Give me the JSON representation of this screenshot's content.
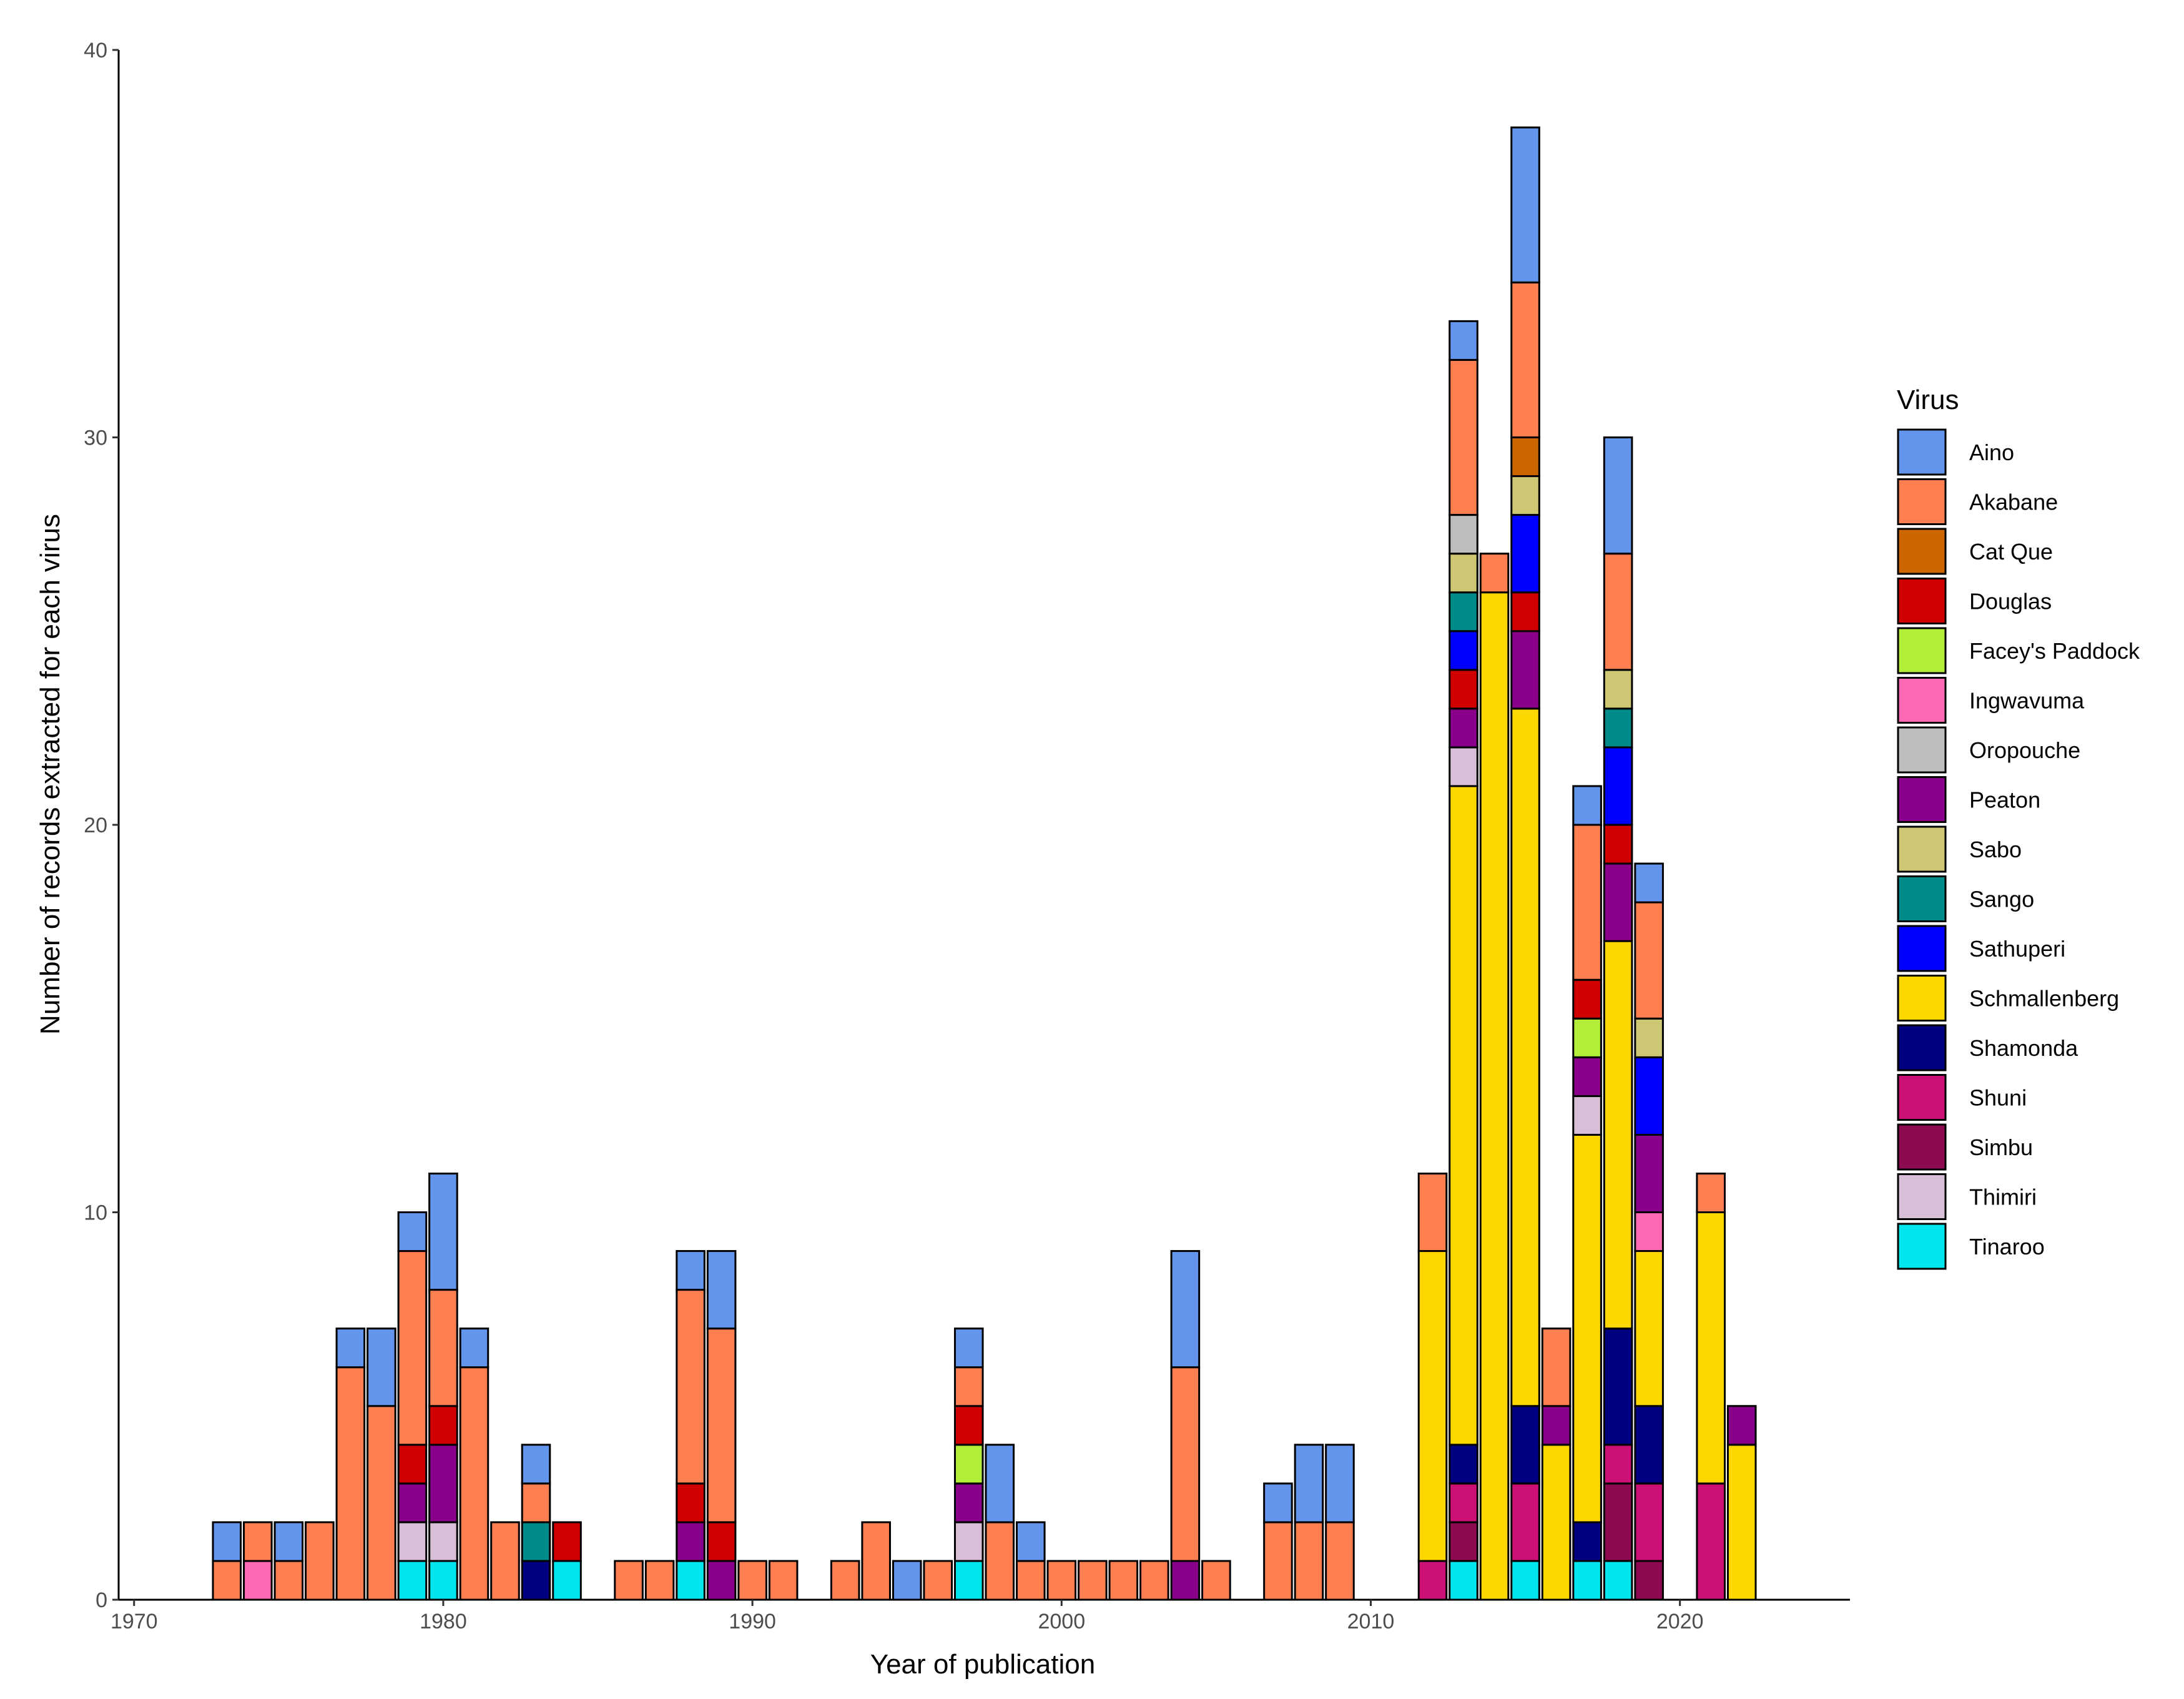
{
  "chart_data": {
    "type": "bar",
    "stacked": true,
    "xlabel": "Year of publication",
    "ylabel": "Number of records extracted for each virus",
    "xlim": [
      1969.5,
      2025.5
    ],
    "ylim": [
      0,
      40
    ],
    "x_ticks": [
      "1970",
      "1980",
      "1990",
      "2000",
      "2010",
      "2020"
    ],
    "y_ticks": [
      "0",
      "10",
      "20",
      "30",
      "40"
    ],
    "grid": false,
    "legend_position": "right",
    "legend_title": "Virus",
    "viruses": [
      {
        "name": "Aino",
        "color": "#6495ED"
      },
      {
        "name": "Akabane",
        "color": "#FF7F50"
      },
      {
        "name": "Cat Que",
        "color": "#CC6600"
      },
      {
        "name": "Douglas",
        "color": "#D00000"
      },
      {
        "name": "Facey's Paddock",
        "color": "#B3EE3A"
      },
      {
        "name": "Ingwavuma",
        "color": "#FF69B4"
      },
      {
        "name": "Oropouche",
        "color": "#BEBEBE"
      },
      {
        "name": "Peaton",
        "color": "#8B008B"
      },
      {
        "name": "Sabo",
        "color": "#CDC673"
      },
      {
        "name": "Sango",
        "color": "#008B8B"
      },
      {
        "name": "Sathuperi",
        "color": "#0000FF"
      },
      {
        "name": "Schmallenberg",
        "color": "#FFD700"
      },
      {
        "name": "Shamonda",
        "color": "#000080"
      },
      {
        "name": "Shuni",
        "color": "#CD1076"
      },
      {
        "name": "Simbu",
        "color": "#8B0A50"
      },
      {
        "name": "Thimiri",
        "color": "#D8BFD8"
      },
      {
        "name": "Tinaroo",
        "color": "#00E5EE"
      }
    ],
    "stack_order": [
      "Tinaroo",
      "Simbu",
      "Shuni",
      "Shamonda",
      "Schmallenberg",
      "Ingwavuma",
      "Thimiri",
      "Peaton",
      "Facey's Paddock",
      "Douglas",
      "Sathuperi",
      "Sango",
      "Sabo",
      "Oropouche",
      "Cat Que",
      "Akabane",
      "Aino"
    ],
    "data": [
      {
        "year": 1973,
        "counts": {
          "Akabane": 1,
          "Aino": 1
        }
      },
      {
        "year": 1974,
        "counts": {
          "Ingwavuma": 1,
          "Akabane": 1
        }
      },
      {
        "year": 1975,
        "counts": {
          "Akabane": 1,
          "Aino": 1
        }
      },
      {
        "year": 1976,
        "counts": {
          "Akabane": 2
        }
      },
      {
        "year": 1977,
        "counts": {
          "Akabane": 6,
          "Aino": 1
        }
      },
      {
        "year": 1978,
        "counts": {
          "Akabane": 5,
          "Aino": 2
        }
      },
      {
        "year": 1979,
        "counts": {
          "Tinaroo": 1,
          "Thimiri": 1,
          "Peaton": 1,
          "Douglas": 1,
          "Akabane": 5,
          "Aino": 1
        }
      },
      {
        "year": 1980,
        "counts": {
          "Tinaroo": 1,
          "Thimiri": 1,
          "Peaton": 2,
          "Douglas": 1,
          "Akabane": 3,
          "Aino": 3
        }
      },
      {
        "year": 1981,
        "counts": {
          "Akabane": 6,
          "Aino": 1
        }
      },
      {
        "year": 1982,
        "counts": {
          "Akabane": 2
        }
      },
      {
        "year": 1983,
        "counts": {
          "Shamonda": 1,
          "Sango": 1,
          "Akabane": 1,
          "Aino": 1
        }
      },
      {
        "year": 1984,
        "counts": {
          "Tinaroo": 1,
          "Douglas": 1
        }
      },
      {
        "year": 1986,
        "counts": {
          "Akabane": 1
        }
      },
      {
        "year": 1987,
        "counts": {
          "Akabane": 1
        }
      },
      {
        "year": 1988,
        "counts": {
          "Tinaroo": 1,
          "Peaton": 1,
          "Douglas": 1,
          "Akabane": 5,
          "Aino": 1
        }
      },
      {
        "year": 1989,
        "counts": {
          "Peaton": 1,
          "Douglas": 1,
          "Akabane": 5,
          "Aino": 2
        }
      },
      {
        "year": 1990,
        "counts": {
          "Akabane": 1
        }
      },
      {
        "year": 1991,
        "counts": {
          "Akabane": 1
        }
      },
      {
        "year": 1993,
        "counts": {
          "Akabane": 1
        }
      },
      {
        "year": 1994,
        "counts": {
          "Akabane": 2
        }
      },
      {
        "year": 1995,
        "counts": {
          "Aino": 1
        }
      },
      {
        "year": 1996,
        "counts": {
          "Akabane": 1
        }
      },
      {
        "year": 1997,
        "counts": {
          "Tinaroo": 1,
          "Thimiri": 1,
          "Peaton": 1,
          "Facey's Paddock": 1,
          "Douglas": 1,
          "Akabane": 1,
          "Aino": 1
        }
      },
      {
        "year": 1998,
        "counts": {
          "Akabane": 2,
          "Aino": 2
        }
      },
      {
        "year": 1999,
        "counts": {
          "Akabane": 1,
          "Aino": 1
        }
      },
      {
        "year": 2000,
        "counts": {
          "Akabane": 1
        }
      },
      {
        "year": 2001,
        "counts": {
          "Akabane": 1
        }
      },
      {
        "year": 2002,
        "counts": {
          "Akabane": 1
        }
      },
      {
        "year": 2003,
        "counts": {
          "Akabane": 1
        }
      },
      {
        "year": 2004,
        "counts": {
          "Peaton": 1,
          "Akabane": 5,
          "Aino": 3
        }
      },
      {
        "year": 2005,
        "counts": {
          "Akabane": 1
        }
      },
      {
        "year": 2007,
        "counts": {
          "Akabane": 2,
          "Aino": 1
        }
      },
      {
        "year": 2008,
        "counts": {
          "Akabane": 2,
          "Aino": 2
        }
      },
      {
        "year": 2009,
        "counts": {
          "Akabane": 2,
          "Aino": 2
        }
      },
      {
        "year": 2012,
        "counts": {
          "Shuni": 1,
          "Schmallenberg": 8,
          "Akabane": 2
        }
      },
      {
        "year": 2013,
        "counts": {
          "Tinaroo": 1,
          "Thimiri": 1,
          "Simbu": 1,
          "Shuni": 1,
          "Shamonda": 1,
          "Schmallenberg": 17,
          "Sathuperi": 1,
          "Sango": 1,
          "Sabo": 1,
          "Peaton": 1,
          "Oropouche": 1,
          "Douglas": 1,
          "Akabane": 4,
          "Aino": 1
        }
      },
      {
        "year": 2014,
        "counts": {
          "Schmallenberg": 26,
          "Akabane": 1
        }
      },
      {
        "year": 2015,
        "counts": {
          "Tinaroo": 1,
          "Shuni": 2,
          "Shamonda": 2,
          "Schmallenberg": 18,
          "Sathuperi": 2,
          "Sabo": 1,
          "Peaton": 2,
          "Douglas": 1,
          "Cat Que": 1,
          "Akabane": 4,
          "Aino": 4
        }
      },
      {
        "year": 2016,
        "counts": {
          "Schmallenberg": 4,
          "Peaton": 1,
          "Akabane": 2
        }
      },
      {
        "year": 2017,
        "counts": {
          "Tinaroo": 1,
          "Thimiri": 1,
          "Shamonda": 1,
          "Schmallenberg": 10,
          "Peaton": 1,
          "Facey's Paddock": 1,
          "Douglas": 1,
          "Akabane": 4,
          "Aino": 1
        }
      },
      {
        "year": 2018,
        "counts": {
          "Tinaroo": 1,
          "Simbu": 2,
          "Shuni": 1,
          "Shamonda": 3,
          "Schmallenberg": 10,
          "Sathuperi": 2,
          "Sango": 1,
          "Sabo": 1,
          "Peaton": 2,
          "Douglas": 1,
          "Akabane": 3,
          "Aino": 3
        }
      },
      {
        "year": 2019,
        "counts": {
          "Simbu": 1,
          "Shuni": 2,
          "Shamonda": 2,
          "Schmallenberg": 4,
          "Sathuperi": 2,
          "Sabo": 1,
          "Peaton": 2,
          "Ingwavuma": 1,
          "Akabane": 3,
          "Aino": 1
        }
      },
      {
        "year": 2021,
        "counts": {
          "Shuni": 3,
          "Schmallenberg": 7,
          "Akabane": 1
        }
      },
      {
        "year": 2022,
        "counts": {
          "Schmallenberg": 4,
          "Peaton": 1
        }
      }
    ]
  }
}
